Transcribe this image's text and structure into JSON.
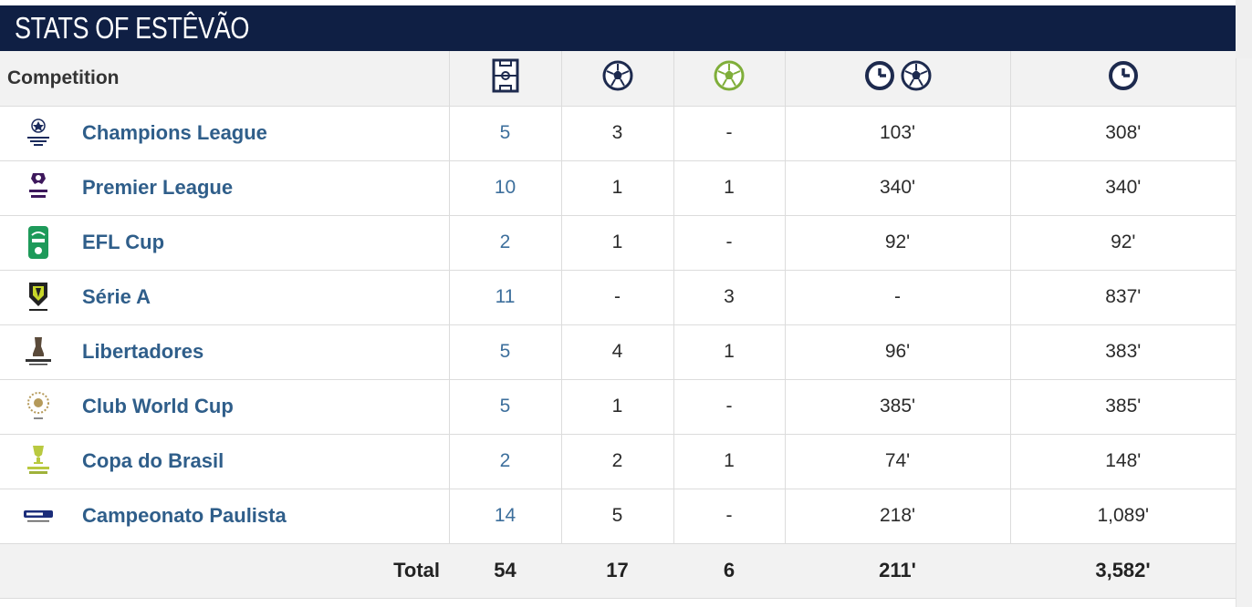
{
  "header": {
    "title": "STATS OF ESTÊVÃO"
  },
  "columns": {
    "competition": "Competition",
    "apps_icon": "pitch-icon",
    "goals_icon": "ball-icon",
    "assists_icon": "assist-ball-icon",
    "mins_per_goal_icons": [
      "clock-icon",
      "ball-icon"
    ],
    "minutes_icon": "clock-icon"
  },
  "rows": [
    {
      "competition": "Champions League",
      "logo": "champions-league-logo",
      "apps": "5",
      "goals": "3",
      "assists": "-",
      "mins_per_goal": "103'",
      "minutes": "308'"
    },
    {
      "competition": "Premier League",
      "logo": "premier-league-logo",
      "apps": "10",
      "goals": "1",
      "assists": "1",
      "mins_per_goal": "340'",
      "minutes": "340'"
    },
    {
      "competition": "EFL Cup",
      "logo": "efl-cup-logo",
      "apps": "2",
      "goals": "1",
      "assists": "-",
      "mins_per_goal": "92'",
      "minutes": "92'"
    },
    {
      "competition": "Série A",
      "logo": "serie-a-logo",
      "apps": "11",
      "goals": "-",
      "assists": "3",
      "mins_per_goal": "-",
      "minutes": "837'"
    },
    {
      "competition": "Libertadores",
      "logo": "libertadores-logo",
      "apps": "5",
      "goals": "4",
      "assists": "1",
      "mins_per_goal": "96'",
      "minutes": "383'"
    },
    {
      "competition": "Club World Cup",
      "logo": "club-world-cup-logo",
      "apps": "5",
      "goals": "1",
      "assists": "-",
      "mins_per_goal": "385'",
      "minutes": "385'"
    },
    {
      "competition": "Copa do Brasil",
      "logo": "copa-do-brasil-logo",
      "apps": "2",
      "goals": "2",
      "assists": "1",
      "mins_per_goal": "74'",
      "minutes": "148'"
    },
    {
      "competition": "Campeonato Paulista",
      "logo": "paulista-logo",
      "apps": "14",
      "goals": "5",
      "assists": "-",
      "mins_per_goal": "218'",
      "minutes": "1,089'"
    }
  ],
  "totals": {
    "label": "Total",
    "apps": "54",
    "goals": "17",
    "assists": "6",
    "mins_per_goal": "211'",
    "minutes": "3,582'"
  },
  "colors": {
    "header_bg": "#0f1f44",
    "link_blue": "#2f5e8a",
    "apps_blue": "#3d6f9c",
    "assist_green": "#7fae3a"
  }
}
